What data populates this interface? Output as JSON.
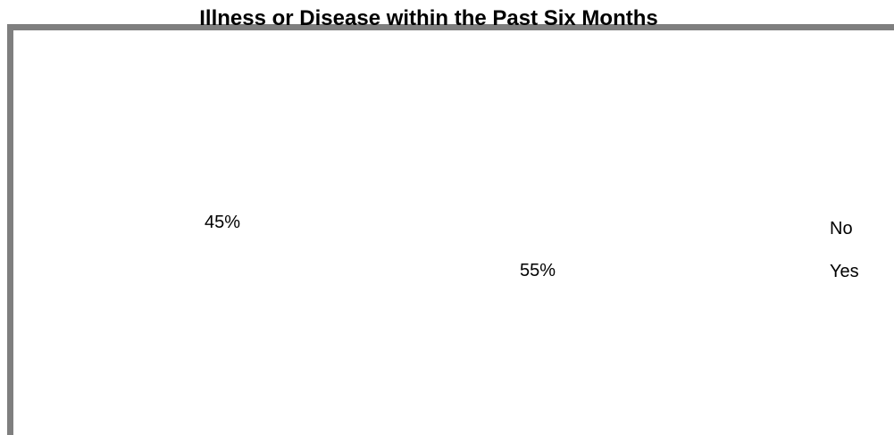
{
  "chart_data": {
    "type": "pie",
    "title": "Illness or Disease within the Past Six Months",
    "categories": [
      "No",
      "Yes"
    ],
    "values": [
      45,
      55
    ],
    "data_labels": [
      "45%",
      "55%"
    ],
    "legend": [
      "No",
      "Yes"
    ],
    "legend_position": "right"
  }
}
